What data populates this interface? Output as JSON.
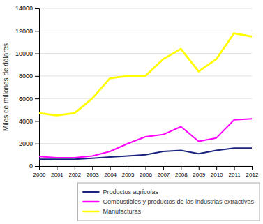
{
  "chart_data": {
    "type": "line",
    "x": [
      2000,
      2001,
      2002,
      2003,
      2004,
      2005,
      2006,
      2007,
      2008,
      2009,
      2010,
      2011,
      2012
    ],
    "series": [
      {
        "name": "Productos agrícolas",
        "color": "#1a237e",
        "values": [
          600,
          600,
          600,
          700,
          800,
          900,
          1000,
          1300,
          1400,
          1100,
          1400,
          1600,
          1600
        ]
      },
      {
        "name": "Combustibles y productos de las industrias extractivas",
        "color": "#ff00ff",
        "values": [
          850,
          750,
          750,
          900,
          1300,
          2000,
          2600,
          2800,
          3500,
          2200,
          2500,
          4100,
          4200
        ]
      },
      {
        "name": "Manufacturas",
        "color": "#ffff00",
        "values": [
          4700,
          4500,
          4700,
          6000,
          7800,
          8000,
          8000,
          9500,
          10400,
          8400,
          9500,
          11800,
          11500
        ]
      }
    ],
    "y_label": "Miles de millones de dólares",
    "xlim": [
      2000,
      2012
    ],
    "xticks": [
      2000,
      2001,
      2002,
      2003,
      2004,
      2005,
      2006,
      2007,
      2008,
      2009,
      2010,
      2011,
      2012
    ],
    "ylim": [
      0,
      14000
    ],
    "yticks": [
      0,
      2000,
      4000,
      6000,
      8000,
      10000,
      12000,
      14000
    ],
    "grid": true,
    "legend": "bottom"
  }
}
